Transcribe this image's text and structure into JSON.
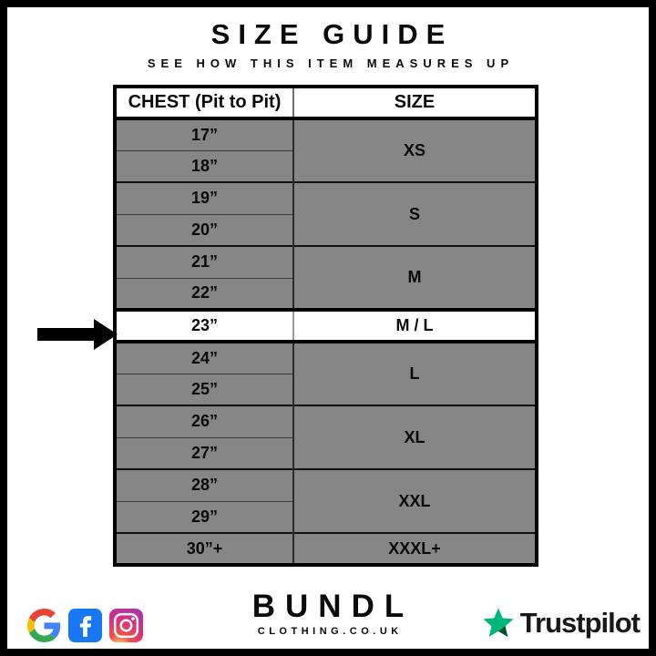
{
  "page": {
    "title": "SIZE GUIDE",
    "subtitle": "SEE HOW THIS ITEM MEASURES UP"
  },
  "table": {
    "headers": {
      "chest": "CHEST (Pit to Pit)",
      "size": "SIZE"
    },
    "groups": [
      {
        "chest": [
          "17”",
          "18”"
        ],
        "size": "XS",
        "highlighted": false
      },
      {
        "chest": [
          "19”",
          "20”"
        ],
        "size": "S",
        "highlighted": false
      },
      {
        "chest": [
          "21”",
          "22”"
        ],
        "size": "M",
        "highlighted": false
      },
      {
        "chest": [
          "23”"
        ],
        "size": "M / L",
        "highlighted": true
      },
      {
        "chest": [
          "24”",
          "25”"
        ],
        "size": "L",
        "highlighted": false
      },
      {
        "chest": [
          "26”",
          "27”"
        ],
        "size": "XL",
        "highlighted": false
      },
      {
        "chest": [
          "28”",
          "29”"
        ],
        "size": "XXL",
        "highlighted": false
      },
      {
        "chest": [
          "30”+"
        ],
        "size": "XXXL+",
        "highlighted": false
      }
    ],
    "row_bg": "#868686",
    "highlight_bg": "#ffffff",
    "arrow_color": "#000000"
  },
  "footer": {
    "brand": "BUNDL",
    "brand_sub": "CLOTHING.CO.UK",
    "trustpilot_label": "Trustpilot",
    "icons": [
      "google-icon",
      "facebook-icon",
      "instagram-icon"
    ],
    "colors": {
      "facebook_blue": "#1877F2",
      "google_blue": "#4285F4",
      "google_red": "#EA4335",
      "google_yellow": "#FBBC05",
      "google_green": "#34A853",
      "trustpilot_green": "#00B67A",
      "trustpilot_dark_green": "#005128",
      "table_gray": "#868686"
    }
  }
}
